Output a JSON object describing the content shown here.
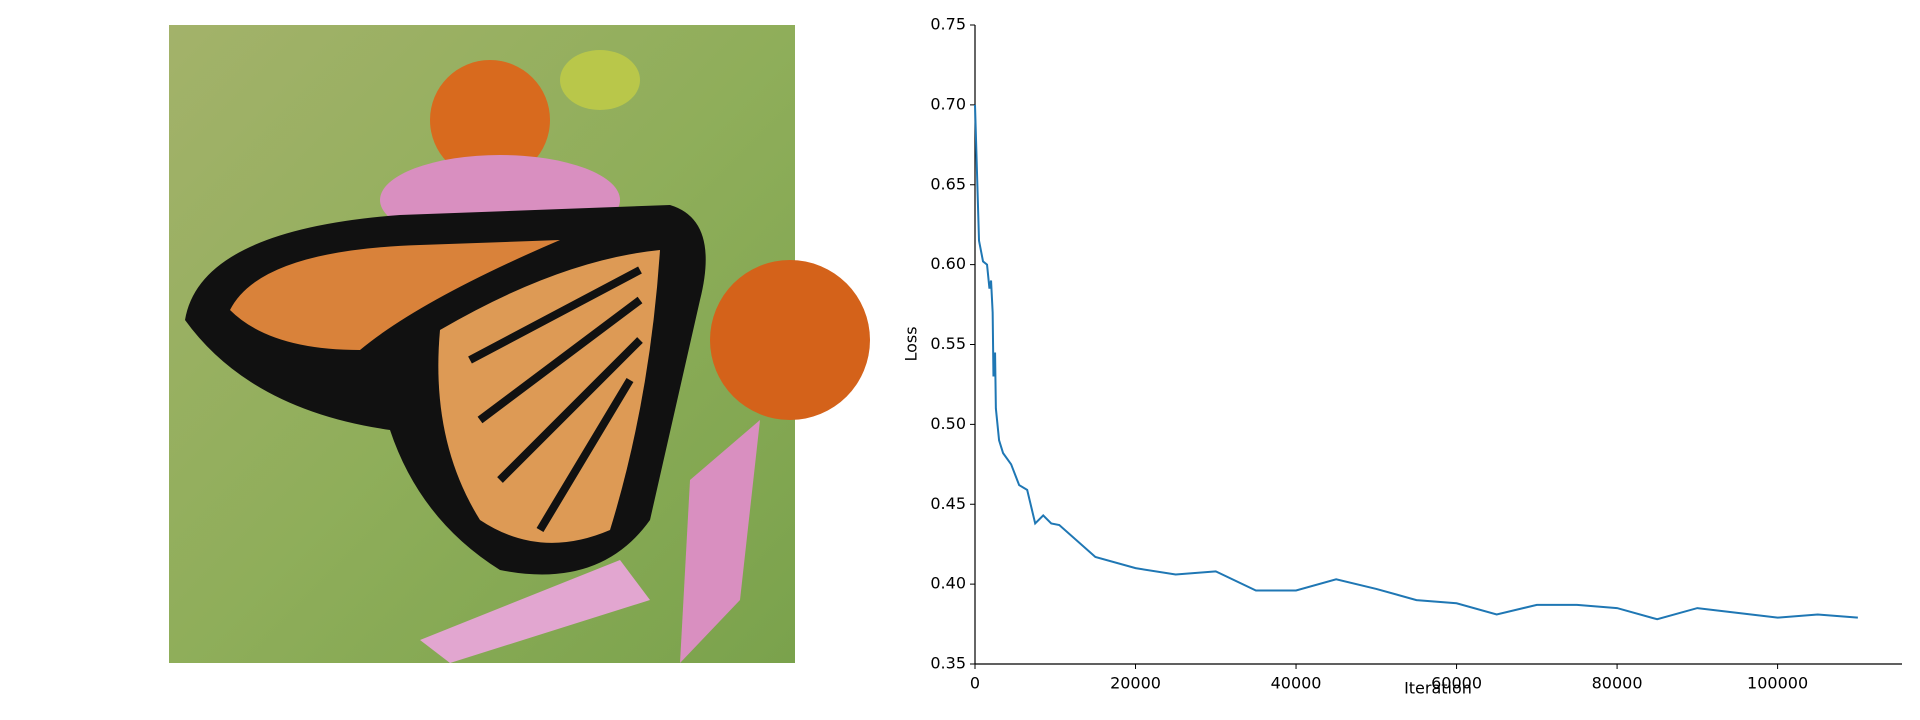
{
  "chart_data": {
    "type": "line",
    "xlabel": "Iteration",
    "ylabel": "Loss",
    "x": [
      0,
      500,
      1000,
      1500,
      1800,
      2000,
      2200,
      2300,
      2500,
      2600,
      3000,
      3500,
      4500,
      5500,
      6500,
      7500,
      8500,
      9500,
      10500,
      15000,
      20000,
      25000,
      30000,
      35000,
      40000,
      45000,
      50000,
      55000,
      60000,
      65000,
      70000,
      75000,
      80000,
      85000,
      90000,
      95000,
      100000,
      105000,
      110000
    ],
    "series": [
      {
        "name": "Loss",
        "color": "#1f77b4",
        "values": [
          0.7,
          0.615,
          0.602,
          0.6,
          0.585,
          0.59,
          0.57,
          0.53,
          0.545,
          0.51,
          0.49,
          0.482,
          0.475,
          0.462,
          0.459,
          0.438,
          0.443,
          0.438,
          0.437,
          0.417,
          0.41,
          0.406,
          0.408,
          0.396,
          0.396,
          0.403,
          0.397,
          0.39,
          0.388,
          0.381,
          0.387,
          0.387,
          0.385,
          0.378,
          0.385,
          0.382,
          0.379,
          0.381,
          0.379
        ]
      }
    ],
    "xlim": [
      0,
      115500
    ],
    "ylim": [
      0.35,
      0.75
    ],
    "xticks": [
      0,
      20000,
      40000,
      60000,
      80000,
      100000
    ],
    "yticks": [
      0.35,
      {
        "value": 0.4,
        "label": "0.40"
      },
      0.45,
      {
        "value": 0.5,
        "label": "0.50"
      },
      0.55,
      {
        "value": 0.6,
        "label": "0.60"
      },
      0.65,
      {
        "value": 0.7,
        "label": "0.70"
      },
      0.75
    ],
    "grid": false
  }
}
